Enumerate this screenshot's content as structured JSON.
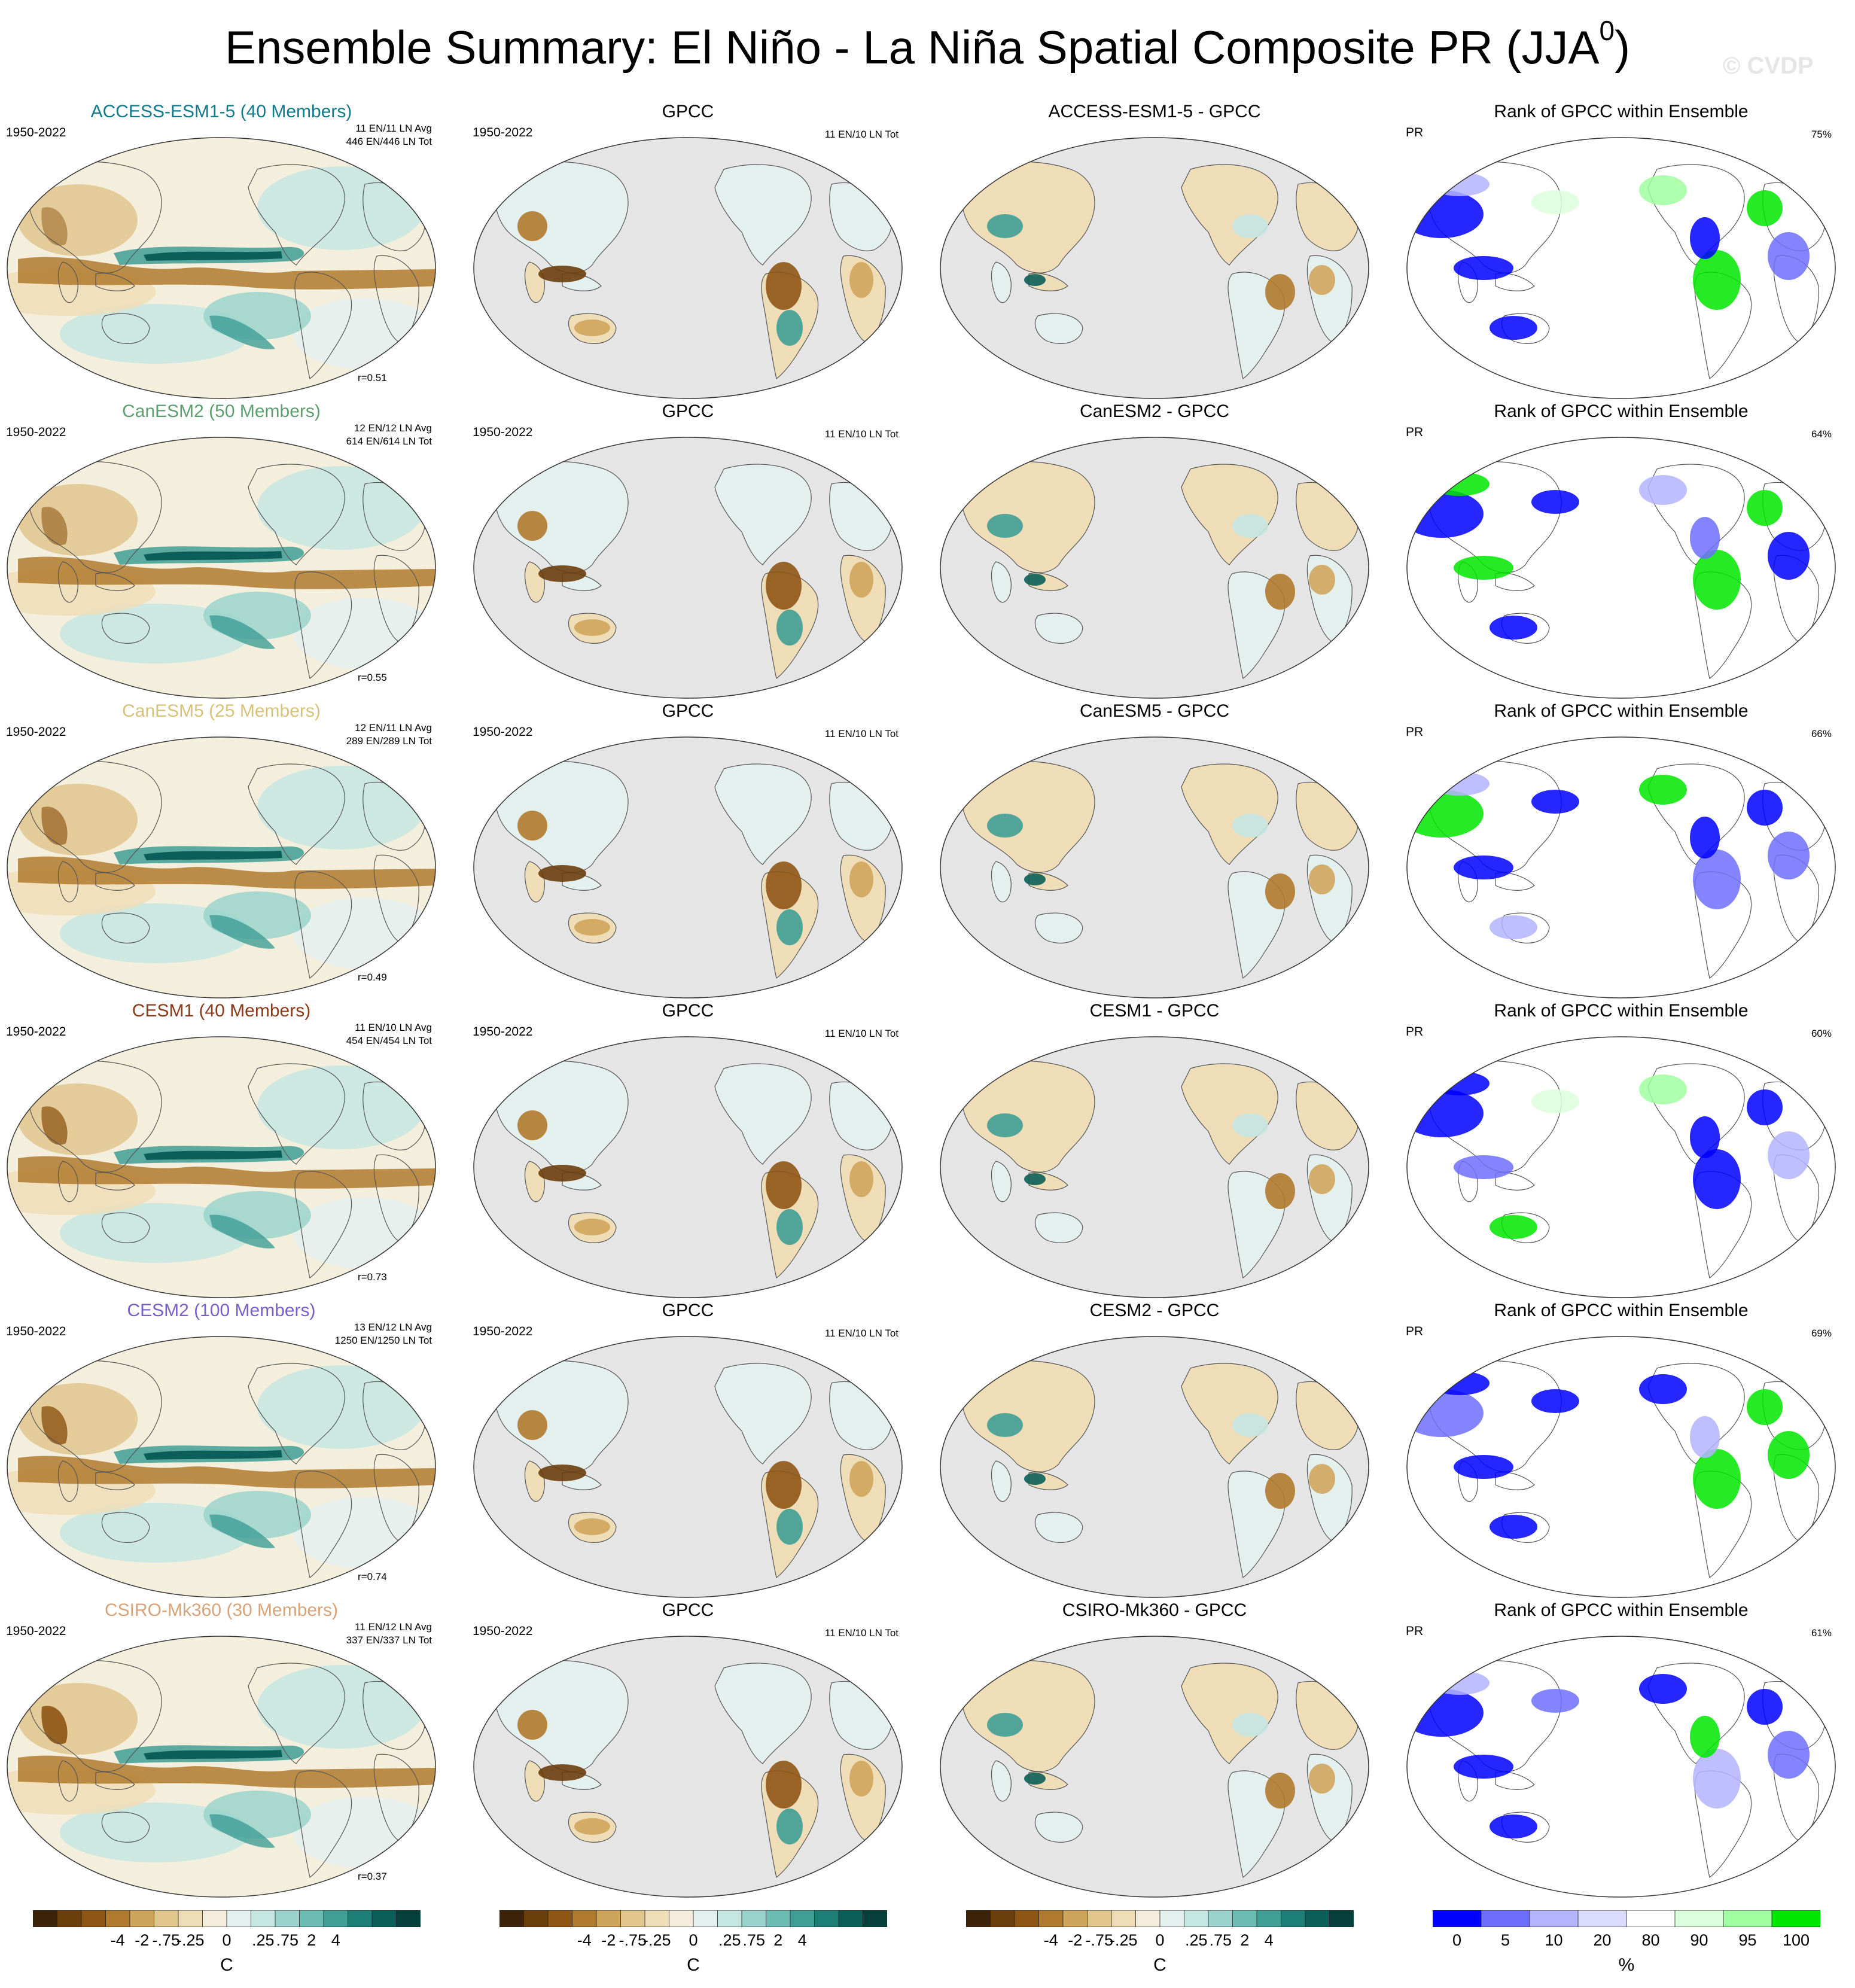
{
  "figure": {
    "title": "Ensemble Summary: El Niño - La Niña Spatial Composite PR (JJA",
    "title_sup": "0",
    "title_close": ")",
    "watermark": "© CVDP"
  },
  "rows": [
    {
      "model": "ACCESS-ESM1-5 (40 Members)",
      "model_short": "ACCESS-ESM1-5",
      "color": "#117A8B",
      "years": "1950-2022",
      "counts1": "11 EN/11 LN Avg",
      "counts2": "446 EN/446 LN Tot",
      "r": "r=0.51",
      "obs": "GPCC",
      "obs_years": "1950-2022",
      "obs_counts": "11 EN/10 LN Tot",
      "diff": "ACCESS-ESM1-5 - GPCC",
      "rank_title": "Rank of GPCC within Ensemble",
      "rank_var": "PR",
      "rank_pct": "75%"
    },
    {
      "model": "CanESM2 (50 Members)",
      "model_short": "CanESM2",
      "color": "#5C9E6E",
      "years": "1950-2022",
      "counts1": "12 EN/12 LN Avg",
      "counts2": "614 EN/614 LN Tot",
      "r": "r=0.55",
      "obs": "GPCC",
      "obs_years": "1950-2022",
      "obs_counts": "11 EN/10 LN Tot",
      "diff": "CanESM2 - GPCC",
      "rank_title": "Rank of GPCC within Ensemble",
      "rank_var": "PR",
      "rank_pct": "64%"
    },
    {
      "model": "CanESM5 (25 Members)",
      "model_short": "CanESM5",
      "color": "#D8C27A",
      "years": "1950-2022",
      "counts1": "12 EN/11 LN Avg",
      "counts2": "289 EN/289 LN Tot",
      "r": "r=0.49",
      "obs": "GPCC",
      "obs_years": "1950-2022",
      "obs_counts": "11 EN/10 LN Tot",
      "diff": "CanESM5 - GPCC",
      "rank_title": "Rank of GPCC within Ensemble",
      "rank_var": "PR",
      "rank_pct": "66%"
    },
    {
      "model": "CESM1 (40 Members)",
      "model_short": "CESM1",
      "color": "#8B3A1A",
      "years": "1950-2022",
      "counts1": "11 EN/10 LN Avg",
      "counts2": "454 EN/454 LN Tot",
      "r": "r=0.73",
      "obs": "GPCC",
      "obs_years": "1950-2022",
      "obs_counts": "11 EN/10 LN Tot",
      "diff": "CESM1 - GPCC",
      "rank_title": "Rank of GPCC within Ensemble",
      "rank_var": "PR",
      "rank_pct": "60%"
    },
    {
      "model": "CESM2 (100 Members)",
      "model_short": "CESM2",
      "color": "#7B5FC9",
      "years": "1950-2022",
      "counts1": "13 EN/12 LN Avg",
      "counts2": "1250 EN/1250 LN Tot",
      "r": "r=0.74",
      "obs": "GPCC",
      "obs_years": "1950-2022",
      "obs_counts": "11 EN/10 LN Tot",
      "diff": "CESM2 - GPCC",
      "rank_title": "Rank of GPCC within Ensemble",
      "rank_var": "PR",
      "rank_pct": "69%"
    },
    {
      "model": "CSIRO-Mk360 (30 Members)",
      "model_short": "CSIRO-Mk360",
      "color": "#D9A37A",
      "years": "1950-2022",
      "counts1": "11 EN/12 LN Avg",
      "counts2": "337 EN/337 LN Tot",
      "r": "r=0.37",
      "obs": "GPCC",
      "obs_years": "1950-2022",
      "obs_counts": "11 EN/10 LN Tot",
      "diff": "CSIRO-Mk360 - GPCC",
      "rank_title": "Rank of GPCC within Ensemble",
      "rank_var": "PR",
      "rank_pct": "61%"
    }
  ],
  "colorbar_pr": {
    "colors": [
      "#3B2208",
      "#6B3E0C",
      "#8E5514",
      "#B07A2E",
      "#CFA55C",
      "#E1C68E",
      "#EEDDB7",
      "#F6EEDC",
      "#E4F0EE",
      "#C5E6E1",
      "#9AD3CB",
      "#6BBCB2",
      "#3F9E95",
      "#1D7E77",
      "#0C5F59",
      "#053F3A"
    ],
    "ticks": [
      "-4",
      "-2",
      "-.75",
      "-.25",
      "0",
      ".25",
      ".75",
      "2",
      "4"
    ],
    "unit": "C"
  },
  "colorbar_rank": {
    "colors": [
      "#0000FF",
      "#6E6EFF",
      "#B4B4FF",
      "#DCDCFF",
      "#FFFFFF",
      "#DCFFDC",
      "#A0FFA0",
      "#00E600"
    ],
    "ticks": [
      "0",
      "5",
      "10",
      "20",
      "80",
      "90",
      "95",
      "100"
    ],
    "unit": "%"
  },
  "map_colors": {
    "ocean_obs": "#E5E5E5",
    "land_line": "#555555",
    "brown": "#8E5514",
    "teal": "#0C5F59",
    "light_brown": "#EEDDB7",
    "light_teal": "#C5E6E1"
  }
}
